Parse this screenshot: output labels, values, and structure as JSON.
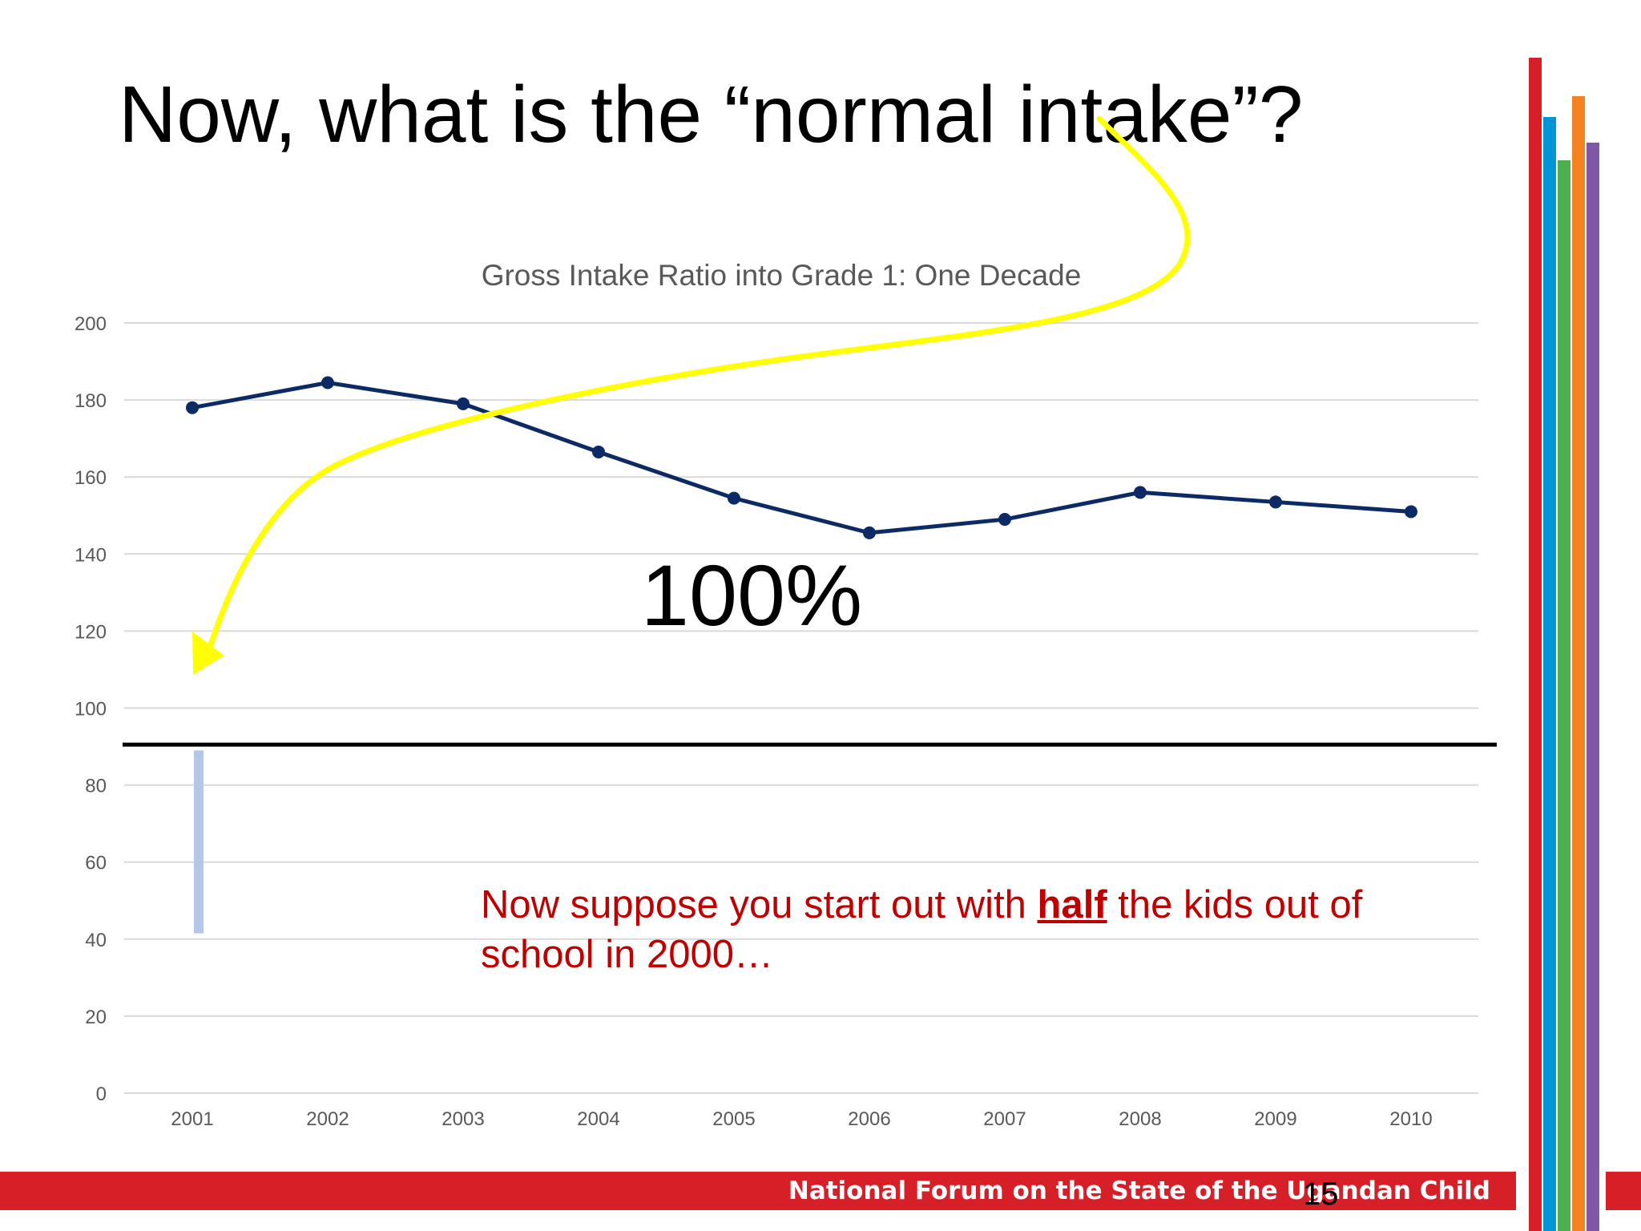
{
  "slide": {
    "title": "Now, what is the “normal intake”?",
    "annotation_big": "100%",
    "caption_before": "Now suppose you start out with ",
    "caption_emph": "half",
    "caption_after": " the kids out of school in 2000…",
    "footer_text": "National Forum on the State of the Ugandan Child",
    "page_number": "15"
  },
  "colors": {
    "line": "#0b2a66",
    "grid": "#d9d9d9",
    "axis_text": "#595959",
    "reference_line": "#000000",
    "half_bar": "#b4c7e7",
    "arrow": "#ffff00",
    "caption": "#c00000",
    "banner": "#d71f27",
    "stripes": [
      "#d71f27",
      "#0096d6",
      "#4caf50",
      "#f58220",
      "#7e57a6"
    ]
  },
  "chart_data": {
    "type": "line",
    "title": "Gross Intake Ratio into Grade 1: One Decade",
    "xlabel": "",
    "ylabel": "",
    "categories": [
      "2001",
      "2002",
      "2003",
      "2004",
      "2005",
      "2006",
      "2007",
      "2008",
      "2009",
      "2010"
    ],
    "series": [
      {
        "values": [
          178,
          184.5,
          179,
          166.5,
          154.5,
          145.5,
          149,
          156,
          153.5,
          151
        ]
      }
    ],
    "ylim": [
      0,
      200
    ],
    "yticks": [
      0,
      20,
      40,
      60,
      80,
      100,
      120,
      140,
      160,
      180,
      200
    ],
    "grid": true,
    "legend": "none",
    "reference_line_value": 90.5,
    "half_bar": {
      "category": "2001",
      "from": 41.5,
      "to": 89
    }
  }
}
